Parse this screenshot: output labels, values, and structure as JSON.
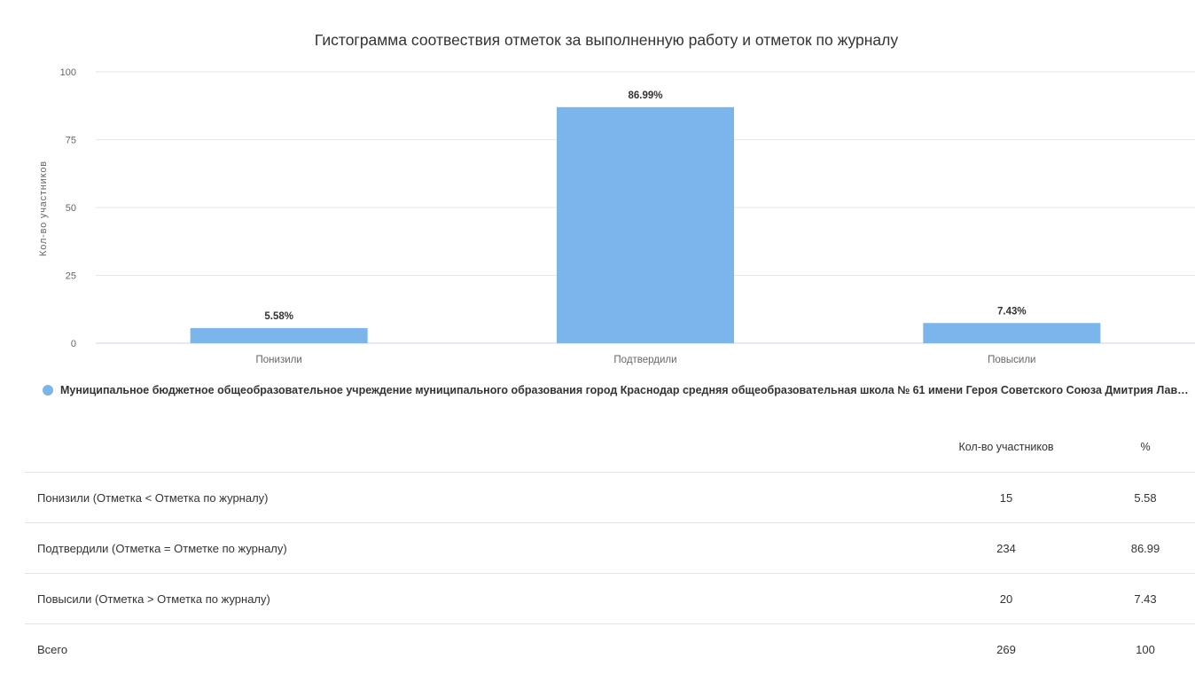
{
  "chart_data": {
    "type": "bar",
    "title": "Гистограмма соотвествия отметок за выполненную работу и отметок по журналу",
    "ylabel": "Кол-во участников",
    "xlabel": "",
    "categories": [
      "Понизили",
      "Подтвердили",
      "Повысили"
    ],
    "values": [
      5.58,
      86.99,
      7.43
    ],
    "data_labels": [
      "5.58%",
      "86.99%",
      "7.43%"
    ],
    "ylim": [
      0,
      100
    ],
    "yticks": [
      0,
      25,
      50,
      75,
      100
    ],
    "grid": true,
    "legend_position": "bottom-left",
    "series": [
      {
        "name": "Муниципальное бюджетное общеобразовательное учреждение муниципального образования город Краснодар средняя общеобразовательная школа № 61 имени Героя Советского Союза Дмитрия Лаври...",
        "color": "#7cb5ec",
        "values": [
          5.58,
          86.99,
          7.43
        ]
      }
    ]
  },
  "table": {
    "headers": [
      "",
      "Кол-во участников",
      "%"
    ],
    "rows": [
      {
        "label": "Понизили (Отметка < Отметка по журналу)",
        "count": "15",
        "percent": "5.58"
      },
      {
        "label": "Подтвердили (Отметка = Отметке по журналу)",
        "count": "234",
        "percent": "86.99"
      },
      {
        "label": "Повысили (Отметка > Отметка по журналу)",
        "count": "20",
        "percent": "7.43"
      },
      {
        "label": "Всего",
        "count": "269",
        "percent": "100"
      }
    ]
  },
  "colors": {
    "bar": "#7cb5ec",
    "grid": "#e6e6e6",
    "axis": "#ccd6eb"
  }
}
